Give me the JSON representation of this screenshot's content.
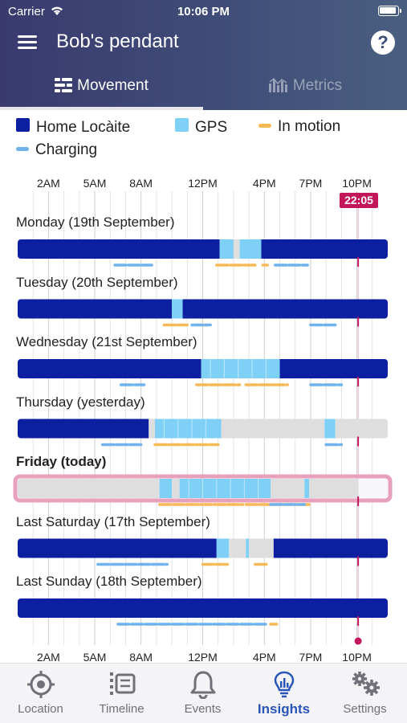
{
  "status_bar": {
    "carrier": "Carrier",
    "time": "10:06 PM"
  },
  "header": {
    "title": "Bob's pendant"
  },
  "tabs": [
    {
      "label": "Movement",
      "active": true
    },
    {
      "label": "Metrics",
      "active": false
    }
  ],
  "legend": [
    {
      "label": "Home Locàite",
      "color": "#0b1fa0",
      "shape": "square"
    },
    {
      "label": "GPS",
      "color": "#7fd0f7",
      "shape": "square"
    },
    {
      "label": "In motion",
      "color": "#f7b955",
      "shape": "dash"
    },
    {
      "label": "Charging",
      "color": "#6fb3ee",
      "shape": "dash"
    }
  ],
  "colors": {
    "home": "#0b1fa0",
    "gps": "#7fd0f7",
    "unknown": "#dedede",
    "motion": "#f7b955",
    "charging": "#6fb3ee",
    "now": "#c2185b"
  },
  "timeline": {
    "axis_labels": [
      "2AM",
      "5AM",
      "8AM",
      "12PM",
      "4PM",
      "7PM",
      "10PM"
    ],
    "axis_label_hours": [
      2,
      5,
      8,
      12,
      16,
      19,
      22
    ],
    "now_label": "22:05",
    "now_hour": 22.08,
    "days": [
      {
        "label": "Monday (19th September)",
        "today": false,
        "segments": [
          {
            "start": 0,
            "end": 13.1,
            "type": "home"
          },
          {
            "start": 13.1,
            "end": 14.0,
            "type": "gps"
          },
          {
            "start": 14.0,
            "end": 14.4,
            "type": "unknown"
          },
          {
            "start": 14.4,
            "end": 15.8,
            "type": "gps"
          },
          {
            "start": 15.8,
            "end": 24,
            "type": "home"
          }
        ],
        "motion": [
          [
            12.9,
            15.4
          ],
          [
            15.9,
            16.2
          ]
        ],
        "charging": [
          [
            6.3,
            8.7
          ],
          [
            16.7,
            18.8
          ]
        ]
      },
      {
        "label": "Tuesday (20th September)",
        "today": false,
        "segments": [
          {
            "start": 0,
            "end": 10.0,
            "type": "home"
          },
          {
            "start": 10.0,
            "end": 10.7,
            "type": "gps"
          },
          {
            "start": 10.7,
            "end": 24,
            "type": "home"
          }
        ],
        "motion": [
          [
            9.5,
            11.0
          ],
          [
            11.6,
            12.3
          ]
        ],
        "charging": [
          [
            11.3,
            12.5
          ],
          [
            19.0,
            20.6
          ]
        ]
      },
      {
        "label": "Wednesday (21st September)",
        "today": false,
        "segments": [
          {
            "start": 0,
            "end": 11.9,
            "type": "home"
          },
          {
            "start": 11.9,
            "end": 17.0,
            "type": "gps"
          },
          {
            "start": 17.0,
            "end": 24,
            "type": "home"
          }
        ],
        "motion": [
          [
            11.6,
            14.4
          ],
          [
            14.8,
            17.5
          ]
        ],
        "charging": [
          [
            6.7,
            8.2
          ],
          [
            19.0,
            21.0
          ]
        ]
      },
      {
        "label": "Thursday (yesterday)",
        "today": false,
        "segments": [
          {
            "start": 0,
            "end": 8.5,
            "type": "home"
          },
          {
            "start": 8.5,
            "end": 8.9,
            "type": "unknown"
          },
          {
            "start": 8.9,
            "end": 13.2,
            "type": "gps"
          },
          {
            "start": 13.2,
            "end": 19.9,
            "type": "unknown"
          },
          {
            "start": 19.9,
            "end": 20.6,
            "type": "gps"
          },
          {
            "start": 20.6,
            "end": 24,
            "type": "unknown"
          }
        ],
        "motion": [
          [
            8.9,
            13.0
          ]
        ],
        "charging": [
          [
            5.5,
            8.0
          ],
          [
            20.0,
            21.0
          ]
        ]
      },
      {
        "label": "Friday (today)",
        "today": true,
        "segments": [
          {
            "start": 0,
            "end": 9.2,
            "type": "unknown"
          },
          {
            "start": 9.2,
            "end": 10.0,
            "type": "gps"
          },
          {
            "start": 10.0,
            "end": 10.5,
            "type": "unknown"
          },
          {
            "start": 10.5,
            "end": 16.4,
            "type": "gps"
          },
          {
            "start": 16.4,
            "end": 18.6,
            "type": "unknown"
          },
          {
            "start": 18.6,
            "end": 18.9,
            "type": "gps"
          },
          {
            "start": 18.9,
            "end": 22.1,
            "type": "unknown"
          }
        ],
        "motion": [
          [
            9.2,
            14.6
          ],
          [
            14.8,
            18.9
          ]
        ],
        "charging": [
          [
            16.4,
            18.6
          ]
        ]
      },
      {
        "label": "Last Saturday (17th September)",
        "today": false,
        "segments": [
          {
            "start": 0,
            "end": 12.9,
            "type": "home"
          },
          {
            "start": 12.9,
            "end": 13.7,
            "type": "gps"
          },
          {
            "start": 13.7,
            "end": 14.8,
            "type": "unknown"
          },
          {
            "start": 14.8,
            "end": 15.0,
            "type": "gps"
          },
          {
            "start": 15.0,
            "end": 16.6,
            "type": "unknown"
          },
          {
            "start": 16.6,
            "end": 24,
            "type": "home"
          }
        ],
        "motion": [
          [
            12.0,
            13.7
          ],
          [
            15.4,
            16.2
          ]
        ],
        "charging": [
          [
            5.2,
            9.7
          ]
        ]
      },
      {
        "label": "Last Sunday (18th September)",
        "today": false,
        "segments": [
          {
            "start": 0,
            "end": 24,
            "type": "home"
          }
        ],
        "motion": [
          [
            16.4,
            16.8
          ]
        ],
        "charging": [
          [
            6.5,
            16.2
          ]
        ]
      }
    ]
  },
  "bottom_nav": [
    {
      "label": "Location",
      "icon": "crosshair-icon",
      "active": false
    },
    {
      "label": "Timeline",
      "icon": "timeline-list-icon",
      "active": false
    },
    {
      "label": "Events",
      "icon": "bell-icon",
      "active": false
    },
    {
      "label": "Insights",
      "icon": "insights-bulb-icon",
      "active": true
    },
    {
      "label": "Settings",
      "icon": "gears-icon",
      "active": false
    }
  ]
}
